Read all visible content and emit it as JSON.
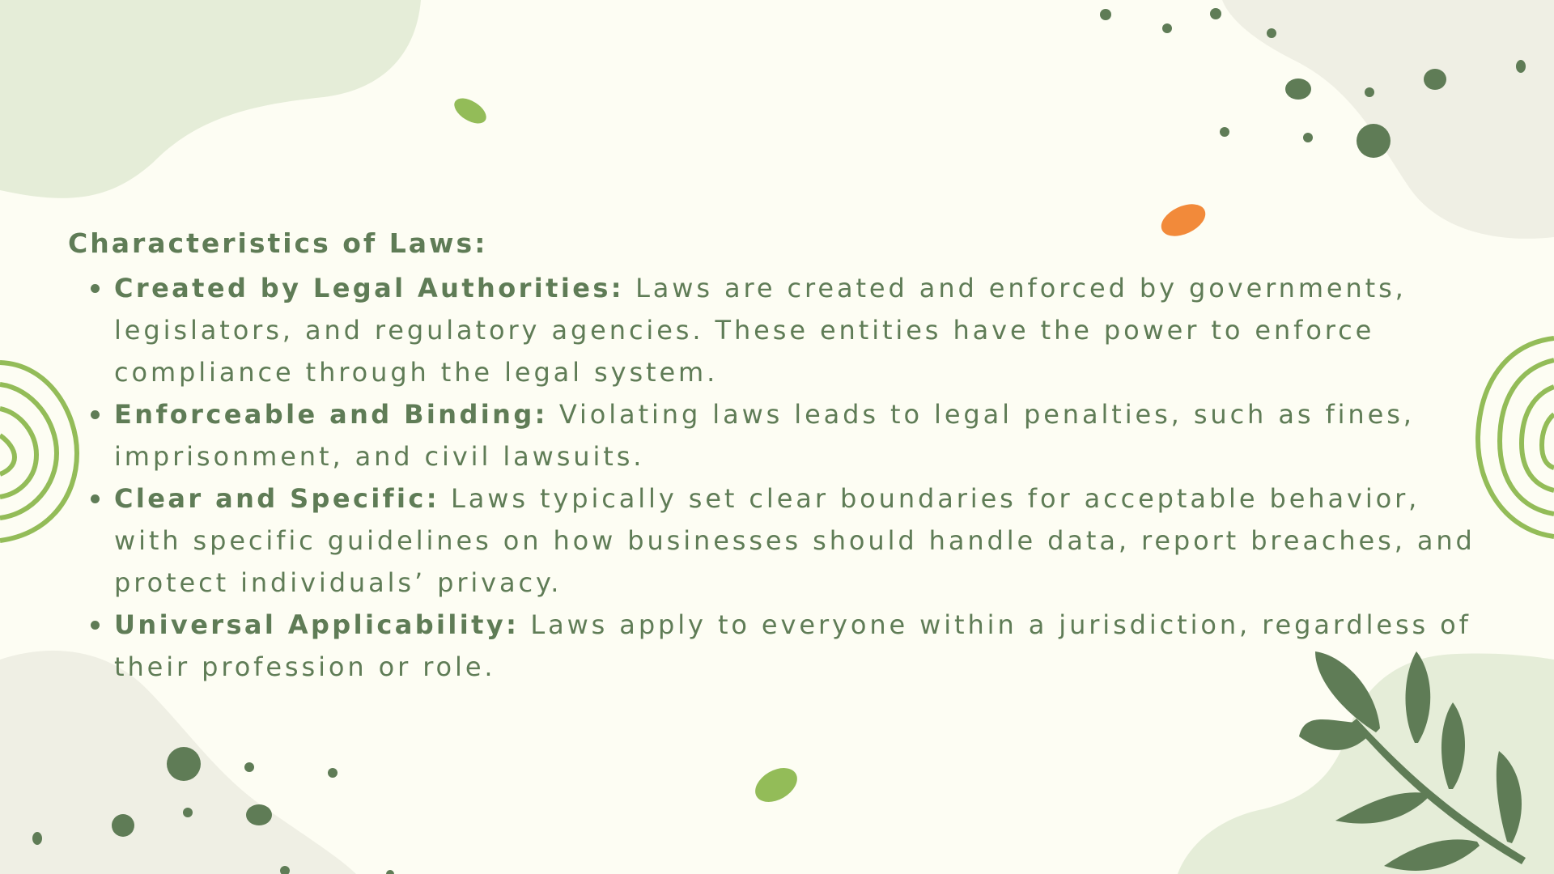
{
  "colors": {
    "background": "#fdfdf3",
    "text": "#5f7c56",
    "accent_green": "#93bc58",
    "accent_orange": "#f28a3a",
    "dark_green": "#5f7c56",
    "blob_light": "#e5edd8",
    "blob_beige": "#efefe4"
  },
  "heading": "Characteristics of Laws:",
  "characteristics": [
    {
      "term": "Created by Legal Authorities:",
      "description": " Laws are created and enforced by governments, legislators, and regulatory agencies. These entities have the power to enforce compliance through the legal system."
    },
    {
      "term": "Enforceable and Binding:",
      "description": " Violating laws leads to legal penalties, such as fines, imprisonment, and civil lawsuits."
    },
    {
      "term": "Clear and Specific:",
      "description": " Laws typically set clear boundaries for acceptable behavior, with specific guidelines on how businesses should handle data, report breaches, and protect individuals’ privacy."
    },
    {
      "term": "Universal Applicability:",
      "description": " Laws apply to everyone within a jurisdiction, regardless of their profession or role."
    }
  ],
  "decorations": {
    "leaf_icon": "leaf-branch-icon",
    "spiral_icon": "concentric-rings-icon"
  }
}
